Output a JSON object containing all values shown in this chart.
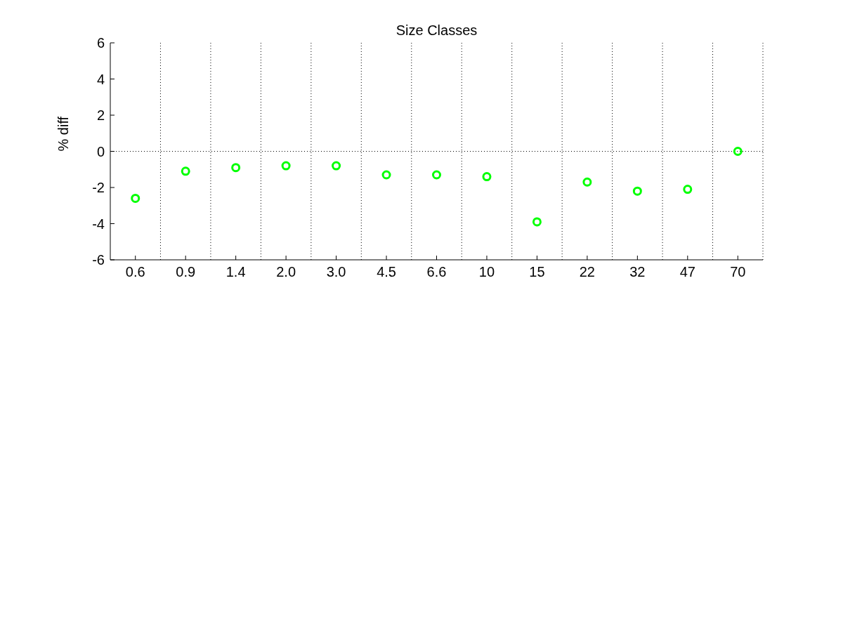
{
  "chart_data": {
    "type": "scatter",
    "title": "Size Classes",
    "ylabel": "% diff",
    "categories": [
      "0.6",
      "0.9",
      "1.4",
      "2.0",
      "3.0",
      "4.5",
      "6.6",
      "10",
      "15",
      "22",
      "32",
      "47",
      "70"
    ],
    "series": [
      {
        "color": "#00ff00",
        "values": [
          -2.6,
          -1.1,
          -0.9,
          -0.8,
          -0.8,
          -1.3,
          -1.3,
          -1.4,
          -3.9,
          -1.7,
          -2.2,
          -2.1,
          0
        ]
      }
    ],
    "ylim": [
      -6,
      6
    ],
    "yticks": [
      -6,
      -4,
      -2,
      0,
      2,
      4,
      6
    ],
    "grid": "x",
    "marker": "circle",
    "legend": false,
    "ref_lines": [
      {
        "axis": "y",
        "value": 0,
        "line_style": "dotted"
      }
    ]
  }
}
